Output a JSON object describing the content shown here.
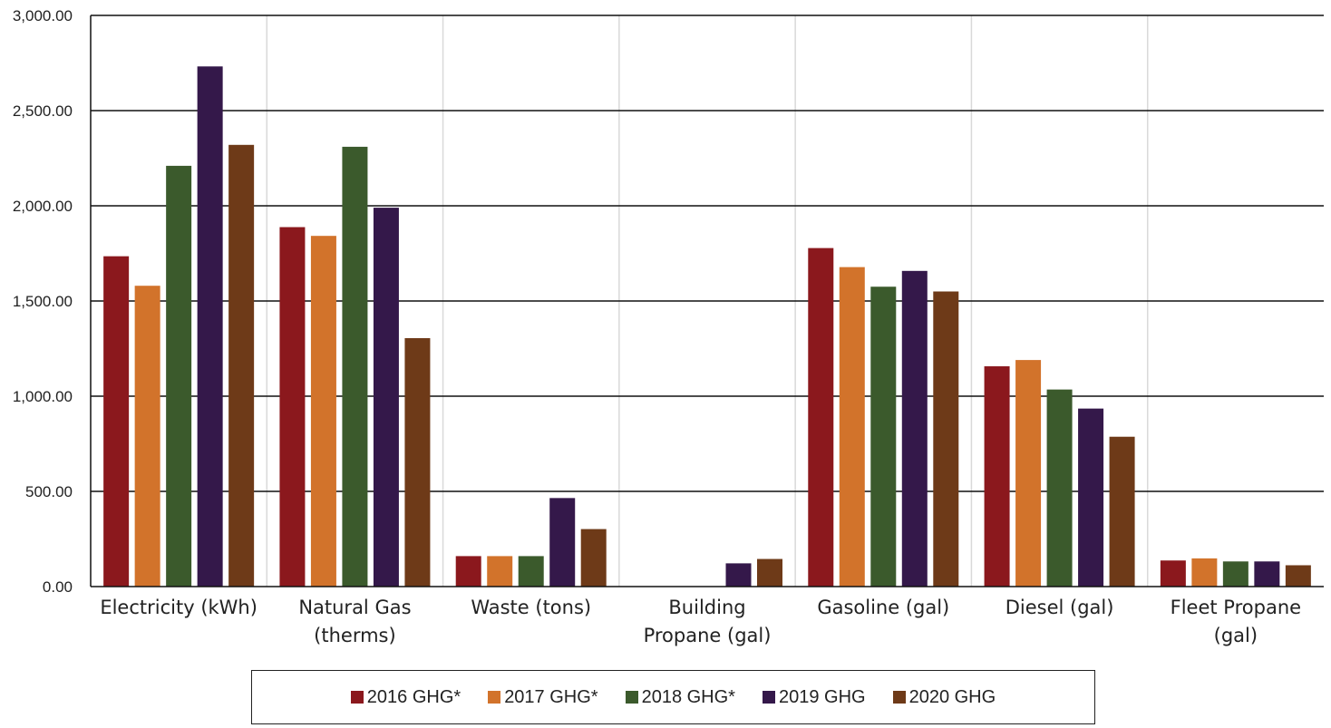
{
  "chart_data": {
    "type": "bar",
    "categories": [
      [
        "Electricity (kWh)"
      ],
      [
        "Natural Gas",
        "(therms)"
      ],
      [
        "Waste (tons)"
      ],
      [
        "Building",
        "Propane (gal)"
      ],
      [
        "Gasoline (gal)"
      ],
      [
        "Diesel (gal)"
      ],
      [
        "Fleet Propane",
        "(gal)"
      ]
    ],
    "series": [
      {
        "name": "2016 GHG*",
        "color": "#8B181D",
        "values": [
          1735,
          1888,
          160,
          0,
          1778,
          1157,
          137
        ]
      },
      {
        "name": "2017 GHG*",
        "color": "#D2732B",
        "values": [
          1580,
          1842,
          160,
          0,
          1678,
          1190,
          148
        ]
      },
      {
        "name": "2018 GHG*",
        "color": "#3B5A2C",
        "values": [
          2210,
          2310,
          160,
          0,
          1575,
          1035,
          132
        ]
      },
      {
        "name": "2019 GHG",
        "color": "#34184A",
        "values": [
          2732,
          1990,
          465,
          122,
          1658,
          935,
          132
        ]
      },
      {
        "name": "2020 GHG",
        "color": "#6E3A18",
        "values": [
          2320,
          1305,
          302,
          145,
          1550,
          787,
          112
        ]
      }
    ],
    "ylim": [
      0,
      3000
    ],
    "yticks": [
      "0.00",
      "500.00",
      "1,000.00",
      "1,500.00",
      "2,000.00",
      "2,500.00",
      "3,000.00"
    ],
    "grid": true,
    "legend_position": "bottom"
  }
}
